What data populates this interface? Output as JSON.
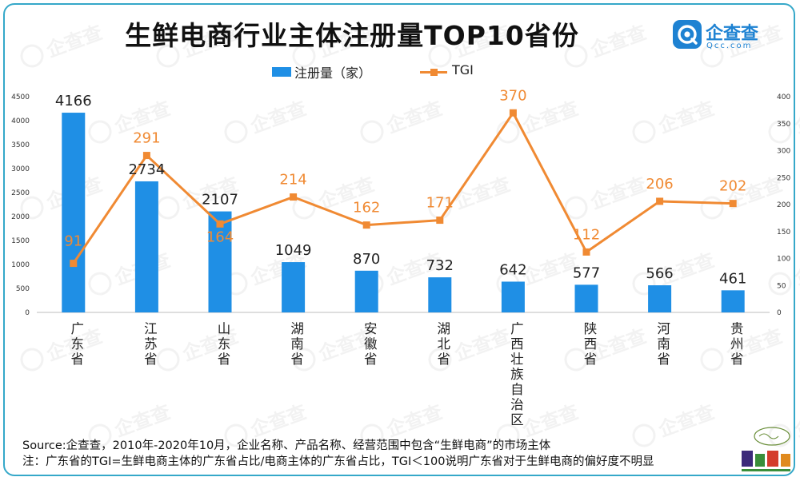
{
  "title": "生鲜电商行业主体注册量TOP10省份",
  "brand": {
    "name": "企查查",
    "domain": "Qcc.com"
  },
  "watermark": "企查查",
  "legend": {
    "bar_label": "注册量（家）",
    "line_label": "TGI"
  },
  "chart_data": {
    "type": "bar",
    "categories": [
      "广东省",
      "江苏省",
      "山东省",
      "湖南省",
      "安徽省",
      "湖北省",
      "广西壮族自治区",
      "陕西省",
      "河南省",
      "贵州省"
    ],
    "series": [
      {
        "name": "注册量（家）",
        "type": "bar",
        "axis": "left",
        "color": "#1f8fe5",
        "values": [
          4166,
          2734,
          2107,
          1049,
          870,
          732,
          642,
          577,
          566,
          461
        ]
      },
      {
        "name": "TGI",
        "type": "line",
        "axis": "right",
        "color": "#f08a33",
        "values": [
          91,
          291,
          164,
          214,
          162,
          171,
          370,
          112,
          206,
          202
        ]
      }
    ],
    "y_left": {
      "min": 0,
      "max": 4500,
      "ticks": [
        0,
        500,
        1000,
        1500,
        2000,
        2500,
        3000,
        3500,
        4000,
        4500
      ]
    },
    "y_right": {
      "min": 0,
      "max": 400,
      "ticks": [
        0,
        50,
        100,
        150,
        200,
        250,
        300,
        350,
        400
      ]
    },
    "grid": false,
    "legend_position": "top-center"
  },
  "footnotes": [
    "Source:企查查，2010年-2020年10月，企业名称、产品名称、经营范围中包含“生鲜电商”的市场主体",
    "注：广东省的TGI=生鲜电商主体的广东省占比/电商主体的广东省占比，TGI＜100说明广东省对于生鲜电商的偏好度不明显"
  ]
}
